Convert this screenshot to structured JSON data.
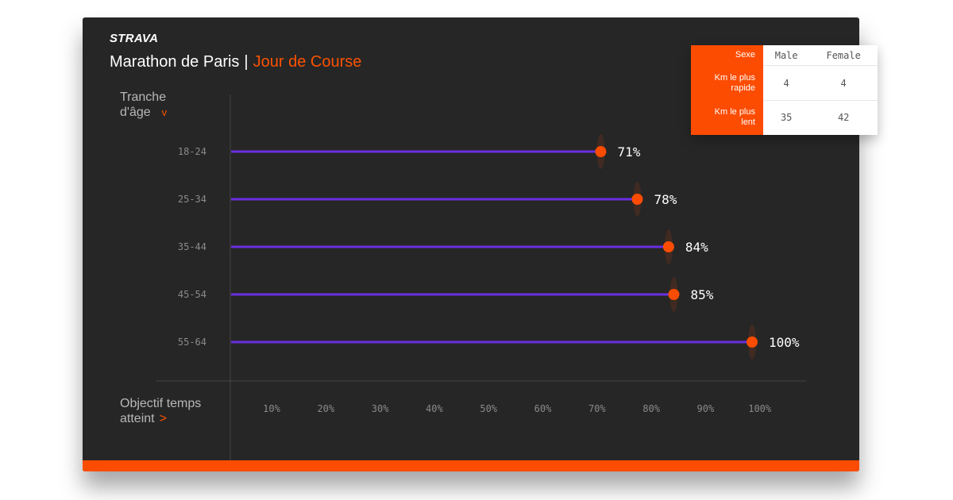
{
  "brand": {
    "logo": "STRAVA"
  },
  "header": {
    "title": "Marathon de Paris",
    "separator": "|",
    "subtitle": "Jour de Course"
  },
  "controls": {
    "age_line1": "Tranche",
    "age_line2": "d'âge",
    "age_caret": "v",
    "goal_line1": "Objectif temps",
    "goal_line2": "atteint",
    "goal_caret": ">"
  },
  "legend": {
    "header": [
      "Sexe",
      "Male",
      "Female"
    ],
    "rows": [
      {
        "label_line1": "Km le plus",
        "label_line2": "rapide",
        "male": "4",
        "female": "4"
      },
      {
        "label_line1": "Km le plus",
        "label_line2": "lent",
        "male": "35",
        "female": "42"
      }
    ]
  },
  "colors": {
    "accent": "#fc4c02",
    "bar": "#6a2fe0",
    "background": "#262626",
    "axis_text": "#8a8a8a"
  },
  "chart_data": {
    "type": "lollipop",
    "categories": [
      "18-24",
      "25-34",
      "35-44",
      "45-54",
      "55-64"
    ],
    "values": [
      71,
      78,
      84,
      85,
      100
    ],
    "value_labels": [
      "71%",
      "78%",
      "84%",
      "85%",
      "100%"
    ],
    "x_ticks": [
      "10%",
      "20%",
      "30%",
      "40%",
      "50%",
      "60%",
      "70%",
      "80%",
      "90%",
      "100%"
    ],
    "x_tick_values": [
      10,
      20,
      30,
      40,
      50,
      60,
      70,
      80,
      90,
      100
    ],
    "xlim": [
      0,
      100
    ],
    "xlabel": "Objectif temps atteint",
    "ylabel": "Tranche d'âge"
  }
}
